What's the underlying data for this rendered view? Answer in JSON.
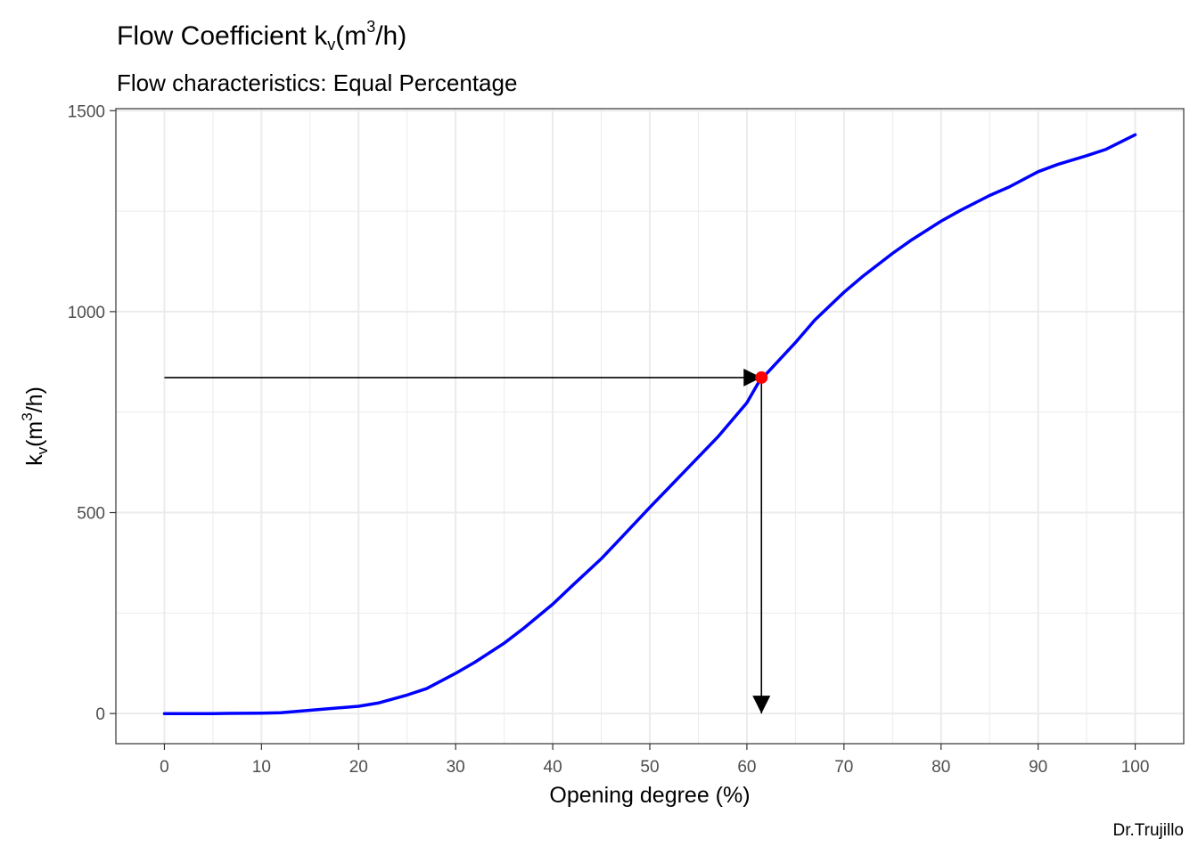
{
  "chart_data": {
    "type": "line",
    "title": {
      "main": "Flow Coefficient k",
      "sub": "v",
      "open": "(m",
      "sup": "3",
      "close": "/h)"
    },
    "subtitle": "Flow characteristics:  Equal Percentage",
    "xlabel": "Opening degree (%)",
    "ylabel": {
      "main": "k",
      "sub": "v",
      "open": "(m",
      "sup": "3",
      "close": "/h)"
    },
    "caption": "Dr.Trujillo",
    "xlim": [
      -5,
      105
    ],
    "ylim": [
      -75,
      1505
    ],
    "x_ticks": [
      0,
      10,
      20,
      30,
      40,
      50,
      60,
      70,
      80,
      90,
      100
    ],
    "y_ticks": [
      0,
      500,
      1000,
      1500
    ],
    "grid": true,
    "series": [
      {
        "color": "#0000ff",
        "x": [
          0,
          5,
          10,
          12,
          15,
          20,
          22,
          25,
          27,
          30,
          32,
          35,
          37,
          40,
          42,
          45,
          47,
          50,
          52,
          55,
          57,
          60,
          61.5,
          62,
          65,
          67,
          70,
          72,
          75,
          77,
          80,
          82,
          85,
          87,
          90,
          92,
          95,
          97,
          100
        ],
        "y": [
          0,
          0,
          1,
          2,
          8,
          18,
          26,
          46,
          62,
          100,
          128,
          175,
          212,
          272,
          318,
          385,
          436,
          513,
          563,
          638,
          688,
          773,
          836,
          845,
          923,
          979,
          1048,
          1089,
          1145,
          1179,
          1225,
          1252,
          1289,
          1310,
          1348,
          1366,
          1388,
          1404,
          1440
        ]
      }
    ],
    "marker": {
      "x": 61.5,
      "y": 836,
      "color": "#ff0000"
    },
    "annotation_arrows": [
      {
        "from": [
          0,
          836
        ],
        "to": [
          61.5,
          836
        ]
      },
      {
        "from": [
          61.5,
          836
        ],
        "to": [
          61.5,
          0
        ]
      }
    ],
    "colors": {
      "curve": "#0000ff",
      "marker": "#ff0000",
      "arrow": "#000000",
      "grid": "#ebebeb"
    }
  }
}
